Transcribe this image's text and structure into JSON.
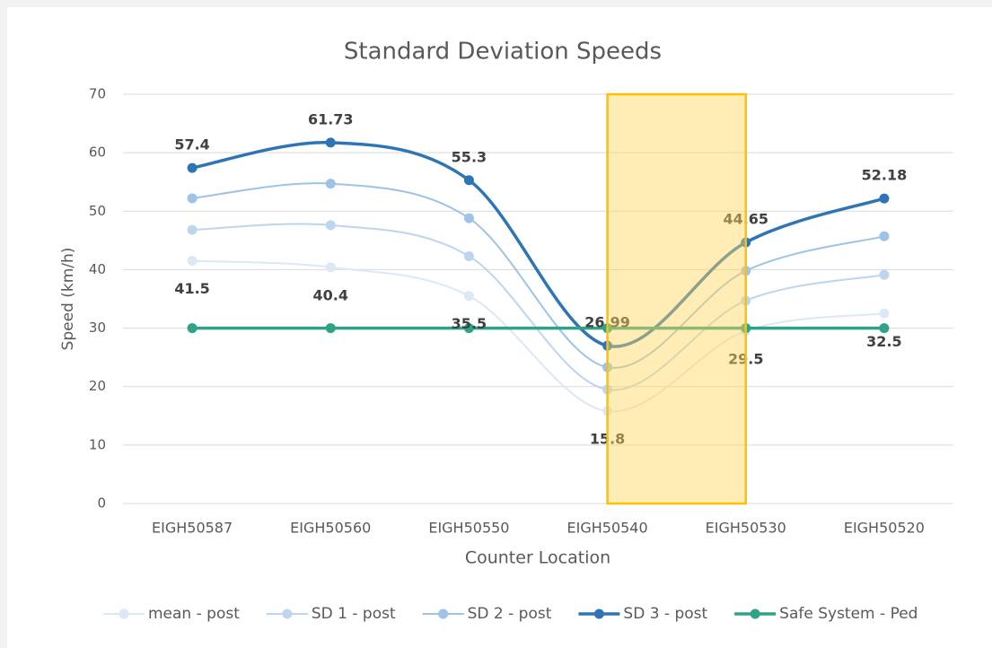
{
  "chart_data": {
    "type": "line",
    "title": "Standard Deviation Speeds",
    "x_label": "Counter Location",
    "y_label": "Speed (km/h)",
    "categories": [
      "EIGH50587",
      "EIGH50560",
      "EIGH50550",
      "EIGH50540",
      "EIGH50530",
      "EIGH50520"
    ],
    "ylim": [
      0,
      70
    ],
    "yticks": [
      0,
      10,
      20,
      30,
      40,
      50,
      60,
      70
    ],
    "grid": true,
    "smooth": true,
    "legend": "bottom",
    "series": [
      {
        "name": "mean - post",
        "color": "#dce8f5",
        "values": [
          41.5,
          40.4,
          35.5,
          15.8,
          29.5,
          32.5
        ],
        "show_labels": true,
        "label_side": "below"
      },
      {
        "name": "SD 1 - post",
        "color": "#bdd6ee",
        "values": [
          46.8,
          47.6,
          42.3,
          19.5,
          34.7,
          39.1
        ]
      },
      {
        "name": "SD 2 - post",
        "color": "#9dc3e6",
        "values": [
          52.2,
          54.7,
          48.8,
          23.3,
          39.8,
          45.7
        ]
      },
      {
        "name": "SD 3 - post",
        "color": "#2e75b6",
        "values": [
          57.4,
          61.73,
          55.3,
          26.99,
          44.65,
          52.18
        ],
        "show_labels": true,
        "label_side": "above",
        "width": 3.5
      },
      {
        "name": "Safe System - Ped",
        "color": "#2fa388",
        "values": [
          30,
          30,
          30,
          30,
          30,
          30
        ],
        "width": 3.5
      }
    ]
  }
}
